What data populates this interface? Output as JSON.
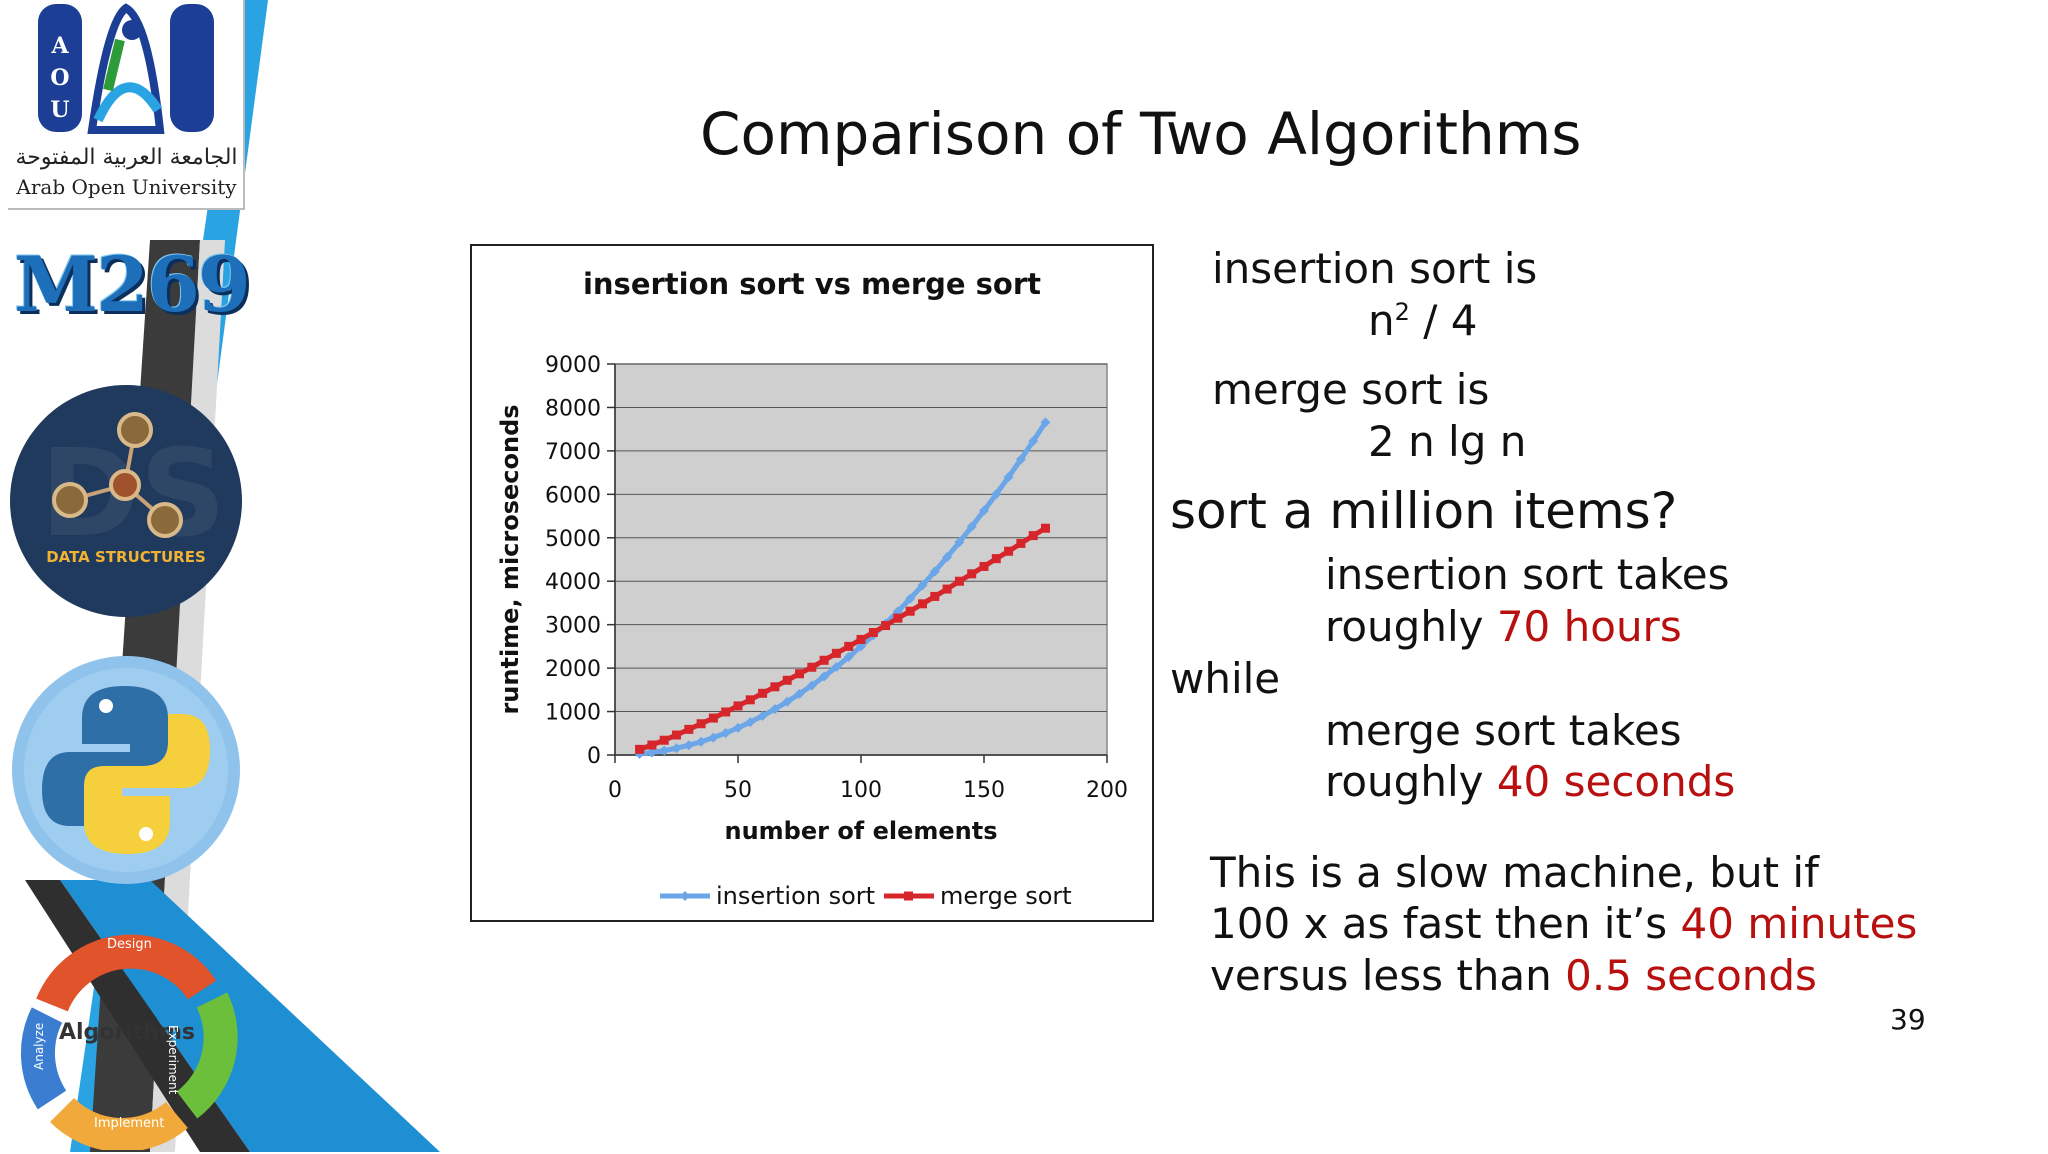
{
  "branding": {
    "university_ar": "الجامعة العربية المفتوحة",
    "university_en": "Arab Open University",
    "logo_letters": [
      "A",
      "O",
      "U"
    ],
    "course_code": "M269",
    "badge_ds": "DATA STRUCTURES",
    "cycle_center": "Algorithms",
    "cycle_labels": [
      "Design",
      "Experiment",
      "Implement",
      "Analyze"
    ]
  },
  "slide": {
    "title": "Comparison of Two Algorithms",
    "page_number": "39"
  },
  "text": {
    "insertion_is": "insertion sort is",
    "insertion_formula_base": "n",
    "insertion_formula_sup": "2",
    "insertion_formula_rest": " / 4",
    "merge_is": "merge sort is",
    "merge_formula": "2 n lg n",
    "million": "sort a million items?",
    "insertion_takes": "insertion sort takes",
    "roughly1": "roughly ",
    "hours": "70 hours",
    "while": "while",
    "merge_takes": "merge sort takes",
    "roughly2": "roughly ",
    "seconds": "40 seconds",
    "slow_line1": "This is a slow machine, but if",
    "slow_line2_a": "100 x as fast then it’s ",
    "slow_line2_b": "40 minutes",
    "slow_line3_a": "versus less than ",
    "slow_line3_b": "0.5 seconds"
  },
  "colors": {
    "insertion": "#6aa6e8",
    "merge": "#d6262b",
    "highlight": "#b80f0f",
    "plot_bg": "#cfcfcf"
  },
  "chart_data": {
    "type": "line",
    "title": "insertion sort vs merge sort",
    "xlabel": "number of elements",
    "ylabel": "runtime, microseconds",
    "xlim": [
      0,
      200
    ],
    "ylim": [
      0,
      9000
    ],
    "xticks": [
      0,
      50,
      100,
      150,
      200
    ],
    "yticks": [
      0,
      1000,
      2000,
      3000,
      4000,
      5000,
      6000,
      7000,
      8000,
      9000
    ],
    "grid": true,
    "legend": "bottom",
    "series": [
      {
        "name": "insertion sort",
        "x": [
          10,
          15,
          20,
          25,
          30,
          35,
          40,
          45,
          50,
          55,
          60,
          65,
          70,
          75,
          80,
          85,
          90,
          95,
          100,
          105,
          110,
          115,
          120,
          125,
          130,
          135,
          140,
          145,
          150,
          155,
          160,
          165,
          170,
          175
        ],
        "values": [
          25,
          56,
          100,
          156,
          225,
          306,
          400,
          506,
          625,
          756,
          900,
          1056,
          1225,
          1406,
          1600,
          1806,
          2025,
          2256,
          2500,
          2756,
          3025,
          3306,
          3600,
          3906,
          4225,
          4556,
          4900,
          5256,
          5625,
          6006,
          6400,
          6806,
          7225,
          7656
        ]
      },
      {
        "name": "merge sort",
        "x": [
          10,
          15,
          20,
          25,
          30,
          35,
          40,
          45,
          50,
          55,
          60,
          65,
          70,
          75,
          80,
          85,
          90,
          95,
          100,
          105,
          110,
          115,
          120,
          125,
          130,
          135,
          140,
          145,
          150,
          155,
          160,
          165,
          170,
          175
        ],
        "values": [
          130,
          230,
          340,
          460,
          590,
          720,
          850,
          990,
          1130,
          1270,
          1420,
          1570,
          1720,
          1870,
          2020,
          2180,
          2340,
          2500,
          2660,
          2820,
          2980,
          3150,
          3310,
          3480,
          3650,
          3820,
          4000,
          4170,
          4340,
          4520,
          4690,
          4870,
          5050,
          5220
        ]
      }
    ]
  }
}
